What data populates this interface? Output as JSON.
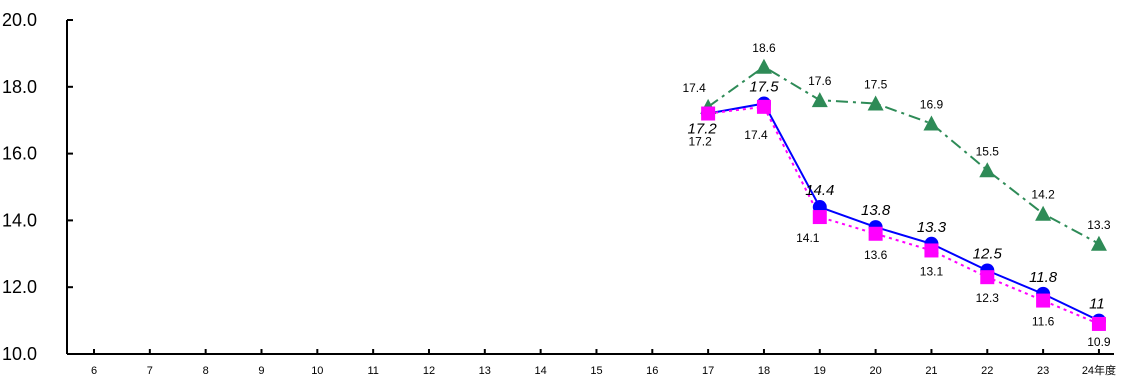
{
  "chart_data": {
    "type": "line",
    "x": [
      "6",
      "7",
      "8",
      "9",
      "10",
      "11",
      "12",
      "13",
      "14",
      "15",
      "16",
      "17",
      "18",
      "19",
      "20",
      "21",
      "22",
      "23",
      "24年度"
    ],
    "ylim": [
      10.0,
      20.0
    ],
    "yticks": [
      "10.0",
      "12.0",
      "14.0",
      "16.0",
      "18.0",
      "20.0"
    ],
    "grid": false,
    "legend": "none",
    "series": [
      {
        "key": "triangle",
        "color": "#2e8b57",
        "marker": "triangle",
        "dash": "dash-dot",
        "label_style": "normal",
        "label_pos": "above",
        "values": [
          null,
          null,
          null,
          null,
          null,
          null,
          null,
          null,
          null,
          null,
          null,
          17.4,
          18.6,
          17.6,
          17.5,
          16.9,
          15.5,
          14.2,
          13.3
        ]
      },
      {
        "key": "circle",
        "color": "#0000ff",
        "marker": "circle",
        "dash": "solid",
        "label_style": "italic",
        "label_pos": "above",
        "values": [
          null,
          null,
          null,
          null,
          null,
          null,
          null,
          null,
          null,
          null,
          null,
          17.2,
          17.5,
          14.4,
          13.8,
          13.3,
          12.5,
          11.8,
          11
        ]
      },
      {
        "key": "square",
        "color": "#ff00ff",
        "marker": "square",
        "dash": "dotted",
        "label_style": "normal",
        "label_pos": "below",
        "values": [
          null,
          null,
          null,
          null,
          null,
          null,
          null,
          null,
          null,
          null,
          null,
          17.2,
          17.4,
          14.1,
          13.6,
          13.1,
          12.3,
          11.6,
          10.9
        ]
      }
    ]
  }
}
